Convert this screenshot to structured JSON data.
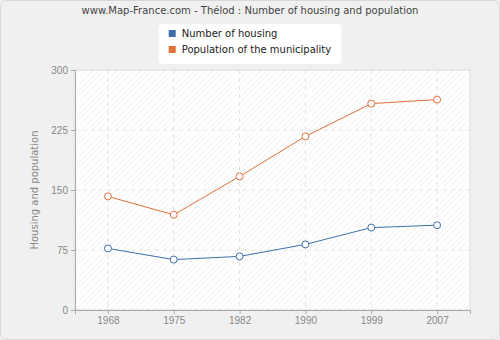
{
  "chart_data": {
    "type": "line",
    "title": "www.Map-France.com - Thélod : Number of housing and population",
    "y_label": "Housing and population",
    "categories": [
      "1968",
      "1975",
      "1982",
      "1990",
      "1999",
      "2007"
    ],
    "series": [
      {
        "name": "Number of housing",
        "color": "#3e6fa8",
        "marker": "circle",
        "values": [
          77,
          63,
          67,
          82,
          103,
          106
        ]
      },
      {
        "name": "Population of the municipality",
        "color": "#e0703c",
        "marker": "circle",
        "values": [
          142,
          119,
          167,
          217,
          258,
          263
        ]
      }
    ],
    "ylim": [
      0,
      300
    ],
    "yticks": [
      0,
      75,
      150,
      225,
      300
    ],
    "grid": true,
    "legend": "top"
  }
}
